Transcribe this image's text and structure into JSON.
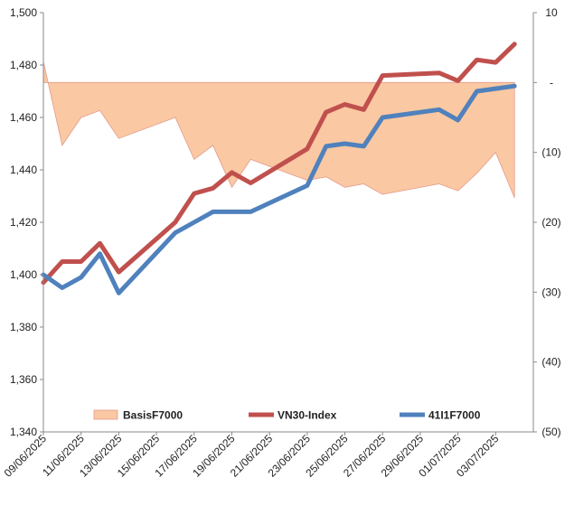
{
  "chart_data": {
    "type": "line",
    "title": "",
    "xlabel": "",
    "ylabel": "",
    "x": [
      "09/06/2025",
      "10/06/2025",
      "11/06/2025",
      "12/06/2025",
      "13/06/2025",
      "16/06/2025",
      "17/06/2025",
      "18/06/2025",
      "19/06/2025",
      "20/06/2025",
      "23/06/2025",
      "24/06/2025",
      "25/06/2025",
      "26/06/2025",
      "27/06/2025",
      "30/06/2025",
      "01/07/2025",
      "02/07/2025",
      "03/07/2025",
      "04/07/2025"
    ],
    "x_tick_labels": [
      "09/06/2025",
      "11/06/2025",
      "13/06/2025",
      "15/06/2025",
      "17/06/2025",
      "19/06/2025",
      "21/06/2025",
      "23/06/2025",
      "25/06/2025",
      "27/06/2025",
      "29/06/2025",
      "01/07/2025",
      "03/07/2025"
    ],
    "y_left": {
      "ylim": [
        1340,
        1500
      ],
      "ticks": [
        "1,340",
        "1,360",
        "1,380",
        "1,400",
        "1,420",
        "1,440",
        "1,460",
        "1,480",
        "1,500"
      ]
    },
    "y_right": {
      "ylim": [
        -50,
        10
      ],
      "ticks": [
        "10",
        "-",
        "(10)",
        "(20)",
        "(30)",
        "(40)",
        "(50)"
      ]
    },
    "series": [
      {
        "name": "BasisF7000",
        "axis": "right",
        "kind": "area",
        "color": "#fac8a2",
        "edge_color": "#e39a8c",
        "points": [
          [
            "2025-06-09",
            3
          ],
          [
            "2025-06-10",
            -9
          ],
          [
            "2025-06-11",
            -5
          ],
          [
            "2025-06-12",
            -4
          ],
          [
            "2025-06-13",
            -8
          ],
          [
            "2025-06-16",
            -5
          ],
          [
            "2025-06-17",
            -11
          ],
          [
            "2025-06-18",
            -9
          ],
          [
            "2025-06-19",
            -15
          ],
          [
            "2025-06-20",
            -11
          ],
          [
            "2025-06-23",
            -14
          ],
          [
            "2025-06-24",
            -13.5
          ],
          [
            "2025-06-25",
            -15
          ],
          [
            "2025-06-26",
            -14.5
          ],
          [
            "2025-06-27",
            -16
          ],
          [
            "2025-06-30",
            -14.5
          ],
          [
            "2025-07-01",
            -15.5
          ],
          [
            "2025-07-02",
            -13
          ],
          [
            "2025-07-03",
            -10
          ],
          [
            "2025-07-04",
            -16.5
          ]
        ]
      },
      {
        "name": "VN30-Index",
        "axis": "left",
        "kind": "line",
        "color": "#c0504d",
        "points": [
          [
            "2025-06-09",
            1397
          ],
          [
            "2025-06-10",
            1405
          ],
          [
            "2025-06-11",
            1405
          ],
          [
            "2025-06-12",
            1412
          ],
          [
            "2025-06-13",
            1401
          ],
          [
            "2025-06-16",
            1420
          ],
          [
            "2025-06-17",
            1431
          ],
          [
            "2025-06-18",
            1433
          ],
          [
            "2025-06-19",
            1439
          ],
          [
            "2025-06-20",
            1435
          ],
          [
            "2025-06-23",
            1448
          ],
          [
            "2025-06-24",
            1462
          ],
          [
            "2025-06-25",
            1465
          ],
          [
            "2025-06-26",
            1463
          ],
          [
            "2025-06-27",
            1476
          ],
          [
            "2025-06-30",
            1477
          ],
          [
            "2025-07-01",
            1474
          ],
          [
            "2025-07-02",
            1482
          ],
          [
            "2025-07-03",
            1481
          ],
          [
            "2025-07-04",
            1488
          ]
        ]
      },
      {
        "name": "41I1F7000",
        "axis": "left",
        "kind": "line",
        "color": "#4f81bd",
        "points": [
          [
            "2025-06-09",
            1400
          ],
          [
            "2025-06-10",
            1395
          ],
          [
            "2025-06-11",
            1399
          ],
          [
            "2025-06-12",
            1408
          ],
          [
            "2025-06-13",
            1393
          ],
          [
            "2025-06-16",
            1416
          ],
          [
            "2025-06-17",
            1420
          ],
          [
            "2025-06-18",
            1424
          ],
          [
            "2025-06-19",
            1424
          ],
          [
            "2025-06-20",
            1424
          ],
          [
            "2025-06-23",
            1434
          ],
          [
            "2025-06-24",
            1449
          ],
          [
            "2025-06-25",
            1450
          ],
          [
            "2025-06-26",
            1449
          ],
          [
            "2025-06-27",
            1460
          ],
          [
            "2025-06-30",
            1463
          ],
          [
            "2025-07-01",
            1459
          ],
          [
            "2025-07-02",
            1470
          ],
          [
            "2025-07-03",
            1471
          ],
          [
            "2025-07-04",
            1472
          ]
        ]
      }
    ],
    "grid": false,
    "legend_position": "bottom",
    "border_color": "#888888"
  }
}
